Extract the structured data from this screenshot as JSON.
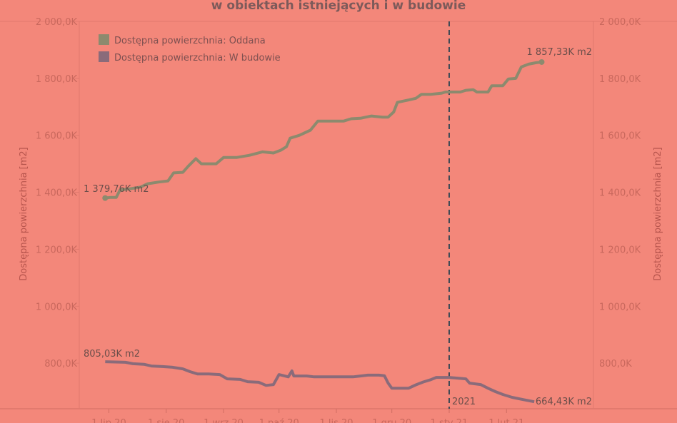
{
  "chart_data": {
    "type": "line",
    "title": "w obiektach istniejących i w budowie",
    "ylabel_left": "Dostępna powierzchnia [m2]",
    "ylabel_right": "Dostępna powierzchnia [m2]",
    "ylim": [
      640,
      2000
    ],
    "y_ticks": [
      800,
      1000,
      1200,
      1400,
      1600,
      1800,
      2000
    ],
    "y_tick_labels": [
      "800,0K",
      "1 000,0K",
      "1 200,0K",
      "1 400,0K",
      "1 600,0K",
      "1 800,0K",
      "2 000,0K"
    ],
    "xlim": [
      "2020-06-15",
      "2021-03-20"
    ],
    "x_tick_dates": [
      "2020-07-01",
      "2020-08-01",
      "2020-09-01",
      "2020-10-01",
      "2020-11-01",
      "2020-12-01",
      "2021-01-01",
      "2021-02-01"
    ],
    "x_tick_labels": [
      "1 lip 20",
      "1 sie 20",
      "1 wrz 20",
      "1 paź 20",
      "1 lis 20",
      "1 gru 20",
      "1 sty 21",
      "1 lut 21"
    ],
    "grid": false,
    "legend_position": "top-left",
    "reference_line": {
      "x": "2021-01-01",
      "label": "2021",
      "style": "dashed"
    },
    "series": [
      {
        "name": "Dostępna powierzchnia: Oddana",
        "color": "#8c8a6e",
        "start_label": "1 379,76K m2",
        "end_label": "1 857,33K m2",
        "points": [
          [
            "2020-06-29",
            1379.76
          ],
          [
            "2020-07-02",
            1382
          ],
          [
            "2020-07-05",
            1382
          ],
          [
            "2020-07-07",
            1408
          ],
          [
            "2020-07-12",
            1412
          ],
          [
            "2020-07-18",
            1418
          ],
          [
            "2020-07-22",
            1430
          ],
          [
            "2020-07-28",
            1436
          ],
          [
            "2020-08-02",
            1440
          ],
          [
            "2020-08-05",
            1468
          ],
          [
            "2020-08-10",
            1470
          ],
          [
            "2020-08-13",
            1492
          ],
          [
            "2020-08-17",
            1518
          ],
          [
            "2020-08-20",
            1500
          ],
          [
            "2020-08-28",
            1500
          ],
          [
            "2020-09-01",
            1522
          ],
          [
            "2020-09-08",
            1522
          ],
          [
            "2020-09-15",
            1530
          ],
          [
            "2020-09-22",
            1542
          ],
          [
            "2020-09-28",
            1538
          ],
          [
            "2020-10-02",
            1548
          ],
          [
            "2020-10-05",
            1560
          ],
          [
            "2020-10-07",
            1590
          ],
          [
            "2020-10-12",
            1600
          ],
          [
            "2020-10-18",
            1618
          ],
          [
            "2020-10-22",
            1650
          ],
          [
            "2020-10-30",
            1650
          ],
          [
            "2020-11-05",
            1650
          ],
          [
            "2020-11-09",
            1658
          ],
          [
            "2020-11-14",
            1660
          ],
          [
            "2020-11-20",
            1668
          ],
          [
            "2020-11-26",
            1664
          ],
          [
            "2020-11-29",
            1664
          ],
          [
            "2020-12-02",
            1682
          ],
          [
            "2020-12-04",
            1716
          ],
          [
            "2020-12-10",
            1724
          ],
          [
            "2020-12-14",
            1730
          ],
          [
            "2020-12-17",
            1744
          ],
          [
            "2020-12-22",
            1744
          ],
          [
            "2020-12-28",
            1748
          ],
          [
            "2020-12-30",
            1752
          ],
          [
            "2021-01-07",
            1752
          ],
          [
            "2021-01-10",
            1758
          ],
          [
            "2021-01-14",
            1760
          ],
          [
            "2021-01-16",
            1752
          ],
          [
            "2021-01-22",
            1752
          ],
          [
            "2021-01-24",
            1774
          ],
          [
            "2021-01-30",
            1774
          ],
          [
            "2021-02-02",
            1798
          ],
          [
            "2021-02-06",
            1800
          ],
          [
            "2021-02-09",
            1840
          ],
          [
            "2021-02-13",
            1850
          ],
          [
            "2021-02-17",
            1855
          ],
          [
            "2021-02-20",
            1857.33
          ]
        ]
      },
      {
        "name": "Dostępna powierzchnia: W budowie",
        "color": "#8a6b7a",
        "start_label": "805,03K m2",
        "end_label": "664,43K m2",
        "points": [
          [
            "2020-06-29",
            805.03
          ],
          [
            "2020-07-10",
            803
          ],
          [
            "2020-07-14",
            798
          ],
          [
            "2020-07-20",
            796
          ],
          [
            "2020-07-24",
            790
          ],
          [
            "2020-07-30",
            788
          ],
          [
            "2020-08-04",
            786
          ],
          [
            "2020-08-10",
            780
          ],
          [
            "2020-08-14",
            770
          ],
          [
            "2020-08-18",
            762
          ],
          [
            "2020-08-24",
            762
          ],
          [
            "2020-08-30",
            760
          ],
          [
            "2020-09-03",
            745
          ],
          [
            "2020-09-10",
            743
          ],
          [
            "2020-09-14",
            735
          ],
          [
            "2020-09-20",
            733
          ],
          [
            "2020-09-24",
            722
          ],
          [
            "2020-09-28",
            725
          ],
          [
            "2020-10-01",
            760
          ],
          [
            "2020-10-06",
            752
          ],
          [
            "2020-10-08",
            773
          ],
          [
            "2020-10-09",
            755
          ],
          [
            "2020-10-16",
            755
          ],
          [
            "2020-10-20",
            752
          ],
          [
            "2020-10-30",
            752
          ],
          [
            "2020-11-10",
            752
          ],
          [
            "2020-11-14",
            755
          ],
          [
            "2020-11-18",
            758
          ],
          [
            "2020-11-24",
            758
          ],
          [
            "2020-11-27",
            756
          ],
          [
            "2020-11-29",
            730
          ],
          [
            "2020-12-01",
            712
          ],
          [
            "2020-12-10",
            712
          ],
          [
            "2020-12-14",
            724
          ],
          [
            "2020-12-18",
            734
          ],
          [
            "2020-12-22",
            742
          ],
          [
            "2020-12-25",
            750
          ],
          [
            "2021-01-01",
            750
          ],
          [
            "2021-01-10",
            745
          ],
          [
            "2021-01-12",
            730
          ],
          [
            "2021-01-18",
            725
          ],
          [
            "2021-01-22",
            712
          ],
          [
            "2021-01-26",
            700
          ],
          [
            "2021-01-30",
            690
          ],
          [
            "2021-02-04",
            680
          ],
          [
            "2021-02-10",
            672
          ],
          [
            "2021-02-16",
            664.43
          ]
        ]
      }
    ]
  }
}
